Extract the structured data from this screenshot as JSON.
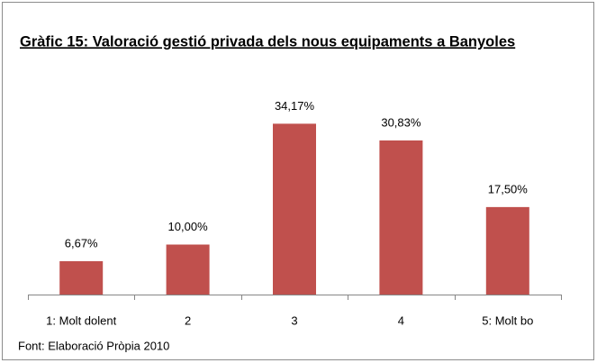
{
  "chart_data": {
    "type": "bar",
    "title": "Gràfic 15: Valoració gestió privada dels nous equipaments a Banyoles",
    "categories": [
      "1: Molt dolent",
      "2",
      "3",
      "4",
      "5: Molt bo"
    ],
    "values": [
      6.67,
      10,
      34.17,
      30.83,
      17.5
    ],
    "value_labels": [
      "6,67%",
      "10,00%",
      "34,17%",
      "30,83%",
      "17,50%"
    ],
    "color": "#c0504d",
    "ylim": [
      0,
      40
    ],
    "source": "Font: Elaboració Pròpia 2010"
  }
}
